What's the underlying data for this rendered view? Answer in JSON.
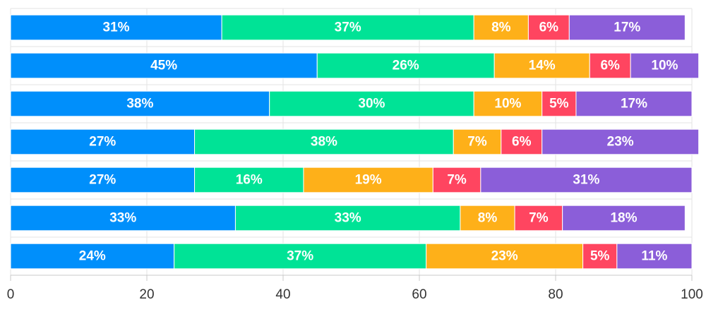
{
  "chart_data": {
    "type": "bar",
    "orientation": "horizontal",
    "stacked": true,
    "title": "",
    "xlabel": "",
    "ylabel": "",
    "xlim": [
      0,
      100
    ],
    "x_ticks": [
      0,
      20,
      40,
      60,
      80,
      100
    ],
    "grid": true,
    "legend": "none",
    "value_format": "{v}%",
    "rows": 7,
    "series": [
      {
        "color": "#008ffb",
        "values": [
          31,
          45,
          38,
          27,
          27,
          33,
          24
        ]
      },
      {
        "color": "#00e396",
        "values": [
          37,
          26,
          30,
          38,
          16,
          33,
          37
        ]
      },
      {
        "color": "#feb019",
        "values": [
          8,
          14,
          10,
          7,
          19,
          8,
          23
        ]
      },
      {
        "color": "#ff4560",
        "values": [
          6,
          6,
          5,
          6,
          7,
          7,
          5
        ]
      },
      {
        "color": "#8b5ed9",
        "values": [
          17,
          10,
          17,
          23,
          31,
          18,
          11
        ]
      }
    ]
  }
}
